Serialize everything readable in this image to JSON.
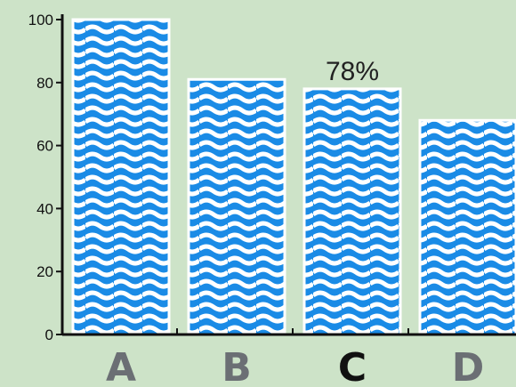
{
  "chart_data": {
    "type": "bar",
    "categories": [
      "A",
      "B",
      "C",
      "D"
    ],
    "values": [
      100,
      81,
      78,
      68
    ],
    "ylim": [
      0,
      100
    ],
    "y_ticks": [
      0,
      20,
      40,
      60,
      80,
      100
    ],
    "highlight_category": "C",
    "data_labels": [
      {
        "category": "C",
        "text": "78%"
      }
    ],
    "grid": false,
    "legend": "none",
    "colors": {
      "background": "#cde3c8",
      "bar": "#1a8be6",
      "wave": "#ffffff",
      "axis": "#111111",
      "category_label": "#6b6f74",
      "highlight_label": "#111111"
    }
  }
}
